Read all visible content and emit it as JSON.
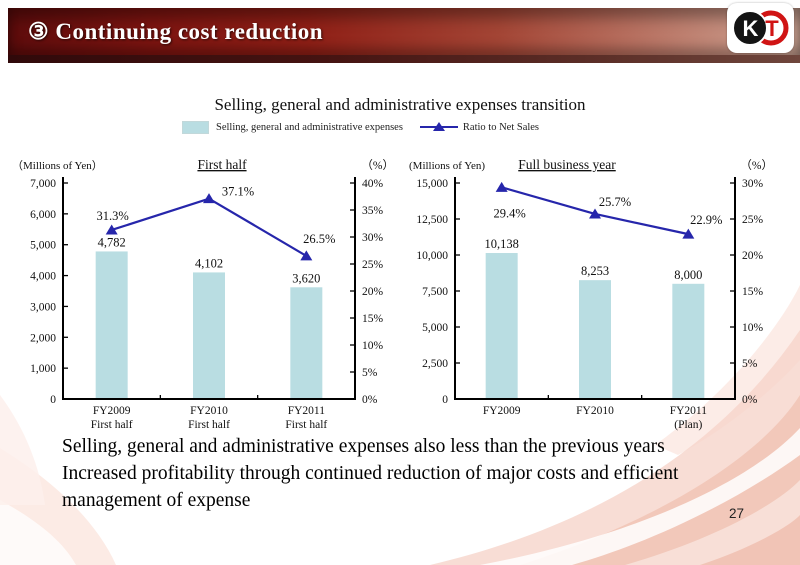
{
  "header": {
    "title": "③ Continuing cost reduction",
    "logo": {
      "letter_left": "K",
      "letter_right": "T"
    }
  },
  "section_title": "Selling, general and administrative expenses transition",
  "legend": {
    "bar_label": "Selling, general and administrative expenses",
    "line_label": "Ratio to Net Sales"
  },
  "colors": {
    "bar_fill": "#b9dde2",
    "line": "#2626ab",
    "logo_red": "#d01414",
    "logo_black": "#141414",
    "swoosh_salmon": "#f0bfae",
    "swoosh_light": "#f8ded5"
  },
  "chart_data": [
    {
      "type": "bar+line",
      "title": "First half",
      "unit_left": "（Millions of Yen）",
      "unit_right": "（%）",
      "categories": [
        [
          "FY2009",
          "First half"
        ],
        [
          "FY2010",
          "First half"
        ],
        [
          "FY2011",
          "First half"
        ]
      ],
      "bars": {
        "name": "Selling, general and administrative expenses",
        "values": [
          4782,
          4102,
          3620
        ],
        "labels": [
          "4,782",
          "4,102",
          "3,620"
        ]
      },
      "line": {
        "name": "Ratio to Net Sales",
        "values": [
          31.3,
          37.1,
          26.5
        ],
        "labels": [
          "31.3%",
          "37.1%",
          "26.5%"
        ],
        "label_dx": [
          1,
          29,
          13
        ],
        "label_dy": [
          -10,
          -3,
          -13
        ]
      },
      "axis_left": {
        "min": 0,
        "max": 7000,
        "ticks": [
          "0",
          "1,000",
          "2,000",
          "3,000",
          "4,000",
          "5,000",
          "6,000",
          "7,000"
        ]
      },
      "axis_right": {
        "min": 0,
        "max": 40,
        "ticks": [
          "0%",
          "5%",
          "10%",
          "15%",
          "20%",
          "25%",
          "30%",
          "35%",
          "40%"
        ]
      },
      "grid": false,
      "legend_position": "top"
    },
    {
      "type": "bar+line",
      "title": "Full business year",
      "unit_left": "(Millions of Yen)",
      "unit_right": "（%）",
      "categories": [
        [
          "FY2009"
        ],
        [
          "FY2010"
        ],
        [
          "FY2011",
          "(Plan)"
        ]
      ],
      "bars": {
        "name": "Selling, general and administrative expenses",
        "values": [
          10138,
          8253,
          8000
        ],
        "labels": [
          "10,138",
          "8,253",
          "8,000"
        ]
      },
      "line": {
        "name": "Ratio to Net Sales",
        "values": [
          29.4,
          25.7,
          22.9
        ],
        "labels": [
          "29.4%",
          "25.7%",
          "22.9%"
        ],
        "label_dx": [
          8,
          20,
          18
        ],
        "label_dy": [
          30,
          -8,
          -10
        ]
      },
      "axis_left": {
        "min": 0,
        "max": 15000,
        "ticks": [
          "0",
          "2,500",
          "5,000",
          "7,500",
          "10,000",
          "12,500",
          "15,000"
        ]
      },
      "axis_right": {
        "min": 0,
        "max": 30,
        "ticks": [
          "0%",
          "5%",
          "10%",
          "15%",
          "20%",
          "25%",
          "30%"
        ]
      },
      "grid": false,
      "legend_position": "top"
    }
  ],
  "footer": {
    "lines": [
      "Selling, general and administrative expenses also less than the  previous years",
      "Increased profitability through continued reduction of major costs and efficient management of expense"
    ],
    "page_number": "27"
  }
}
